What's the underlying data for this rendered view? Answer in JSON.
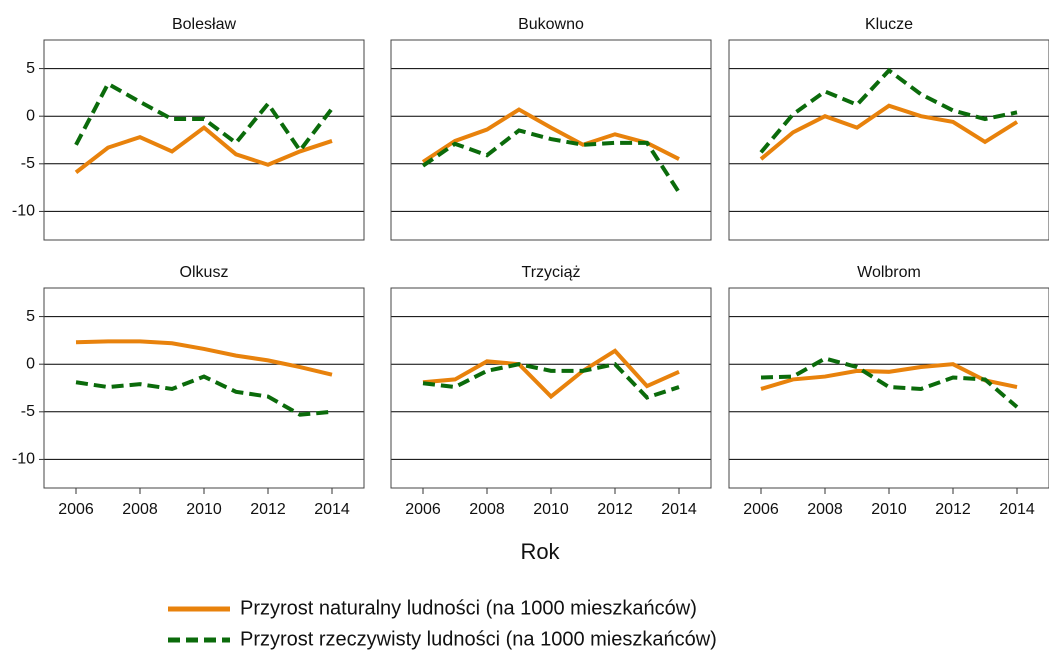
{
  "chart_data": {
    "type": "line",
    "xlabel": "Rok",
    "x": [
      2006,
      2007,
      2008,
      2009,
      2010,
      2011,
      2012,
      2013,
      2014
    ],
    "xlim": [
      2005,
      2015
    ],
    "ylim": [
      -13,
      8
    ],
    "xticks": [
      2006,
      2008,
      2010,
      2012,
      2014
    ],
    "yticks": [
      5,
      0,
      -5,
      -10
    ],
    "grid": true,
    "series": [
      {
        "name": "Przyrost naturalny ludności (na 1000 mieszkańców)",
        "color": "#e8820c",
        "dashed": false
      },
      {
        "name": "Przyrost rzeczywisty ludności (na 1000 mieszkańców)",
        "color": "#0b6b0b",
        "dashed": true
      }
    ],
    "panels": [
      {
        "title": "Bolesław",
        "series": [
          {
            "values": [
              -5.9,
              -3.3,
              -2.2,
              -3.7,
              -1.2,
              -4.0,
              -5.1,
              -3.7,
              -2.6
            ]
          },
          {
            "values": [
              -3.0,
              3.4,
              1.5,
              -0.3,
              -0.3,
              -2.8,
              1.3,
              -3.6,
              0.8
            ]
          }
        ]
      },
      {
        "title": "Bukowno",
        "series": [
          {
            "values": [
              -4.8,
              -2.6,
              -1.4,
              0.7,
              -1.2,
              -3.0,
              -1.9,
              -2.8,
              -4.5
            ]
          },
          {
            "values": [
              -5.2,
              -2.9,
              -4.1,
              -1.5,
              -2.4,
              -3.0,
              -2.8,
              -2.8,
              -8.0
            ]
          }
        ]
      },
      {
        "title": "Klucze",
        "series": [
          {
            "values": [
              -4.5,
              -1.7,
              0.0,
              -1.2,
              1.1,
              0.0,
              -0.6,
              -2.7,
              -0.6
            ]
          },
          {
            "values": [
              -3.8,
              0.2,
              2.6,
              1.2,
              4.8,
              2.3,
              0.6,
              -0.3,
              0.4
            ]
          }
        ]
      },
      {
        "title": "Olkusz",
        "series": [
          {
            "values": [
              2.3,
              2.4,
              2.4,
              2.2,
              1.6,
              0.9,
              0.4,
              -0.3,
              -1.1
            ]
          },
          {
            "values": [
              -1.9,
              -2.4,
              -2.1,
              -2.6,
              -1.3,
              -2.9,
              -3.4,
              -5.3,
              -5.0
            ]
          }
        ]
      },
      {
        "title": "Trzyciąż",
        "series": [
          {
            "values": [
              -1.9,
              -1.6,
              0.3,
              0.0,
              -3.4,
              -0.7,
              1.4,
              -2.3,
              -0.8
            ]
          },
          {
            "values": [
              -2.0,
              -2.4,
              -0.7,
              0.0,
              -0.7,
              -0.7,
              0.0,
              -3.5,
              -2.4
            ]
          }
        ]
      },
      {
        "title": "Wolbrom",
        "series": [
          {
            "values": [
              -2.6,
              -1.6,
              -1.3,
              -0.7,
              -0.8,
              -0.3,
              0.0,
              -1.7,
              -2.4
            ]
          },
          {
            "values": [
              -1.4,
              -1.3,
              0.6,
              -0.3,
              -2.4,
              -2.6,
              -1.4,
              -1.6,
              -4.5
            ]
          }
        ]
      }
    ]
  }
}
